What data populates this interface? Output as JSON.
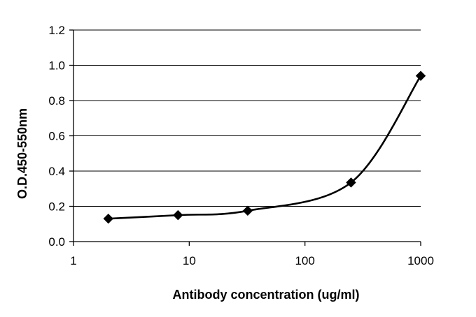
{
  "chart_data": {
    "type": "line",
    "title": "",
    "xlabel": "Antibody concentration (ug/ml)",
    "ylabel": "O.D.450-550nm",
    "x_scale": "log",
    "xlim": [
      1,
      1000
    ],
    "ylim": [
      0,
      1.2
    ],
    "x_ticks": [
      1,
      10,
      100,
      1000
    ],
    "x_tick_labels": [
      "1",
      "10",
      "100",
      "1000"
    ],
    "y_ticks": [
      0,
      0.2,
      0.4,
      0.6,
      0.8,
      1.0,
      1.2
    ],
    "y_tick_labels": [
      "0.0",
      "0.2",
      "0.4",
      "0.6",
      "0.8",
      "1.0",
      "1.2"
    ],
    "grid": "horizontal",
    "legend": "none",
    "marker": "diamond",
    "line_style": "smoothed",
    "colors": {
      "line": "#000000",
      "marker": "#000000",
      "grid": "#000000",
      "background": "#ffffff"
    },
    "series": [
      {
        "x": [
          2,
          8,
          32,
          250,
          1000
        ],
        "y": [
          0.13,
          0.15,
          0.175,
          0.335,
          0.94
        ]
      }
    ]
  }
}
